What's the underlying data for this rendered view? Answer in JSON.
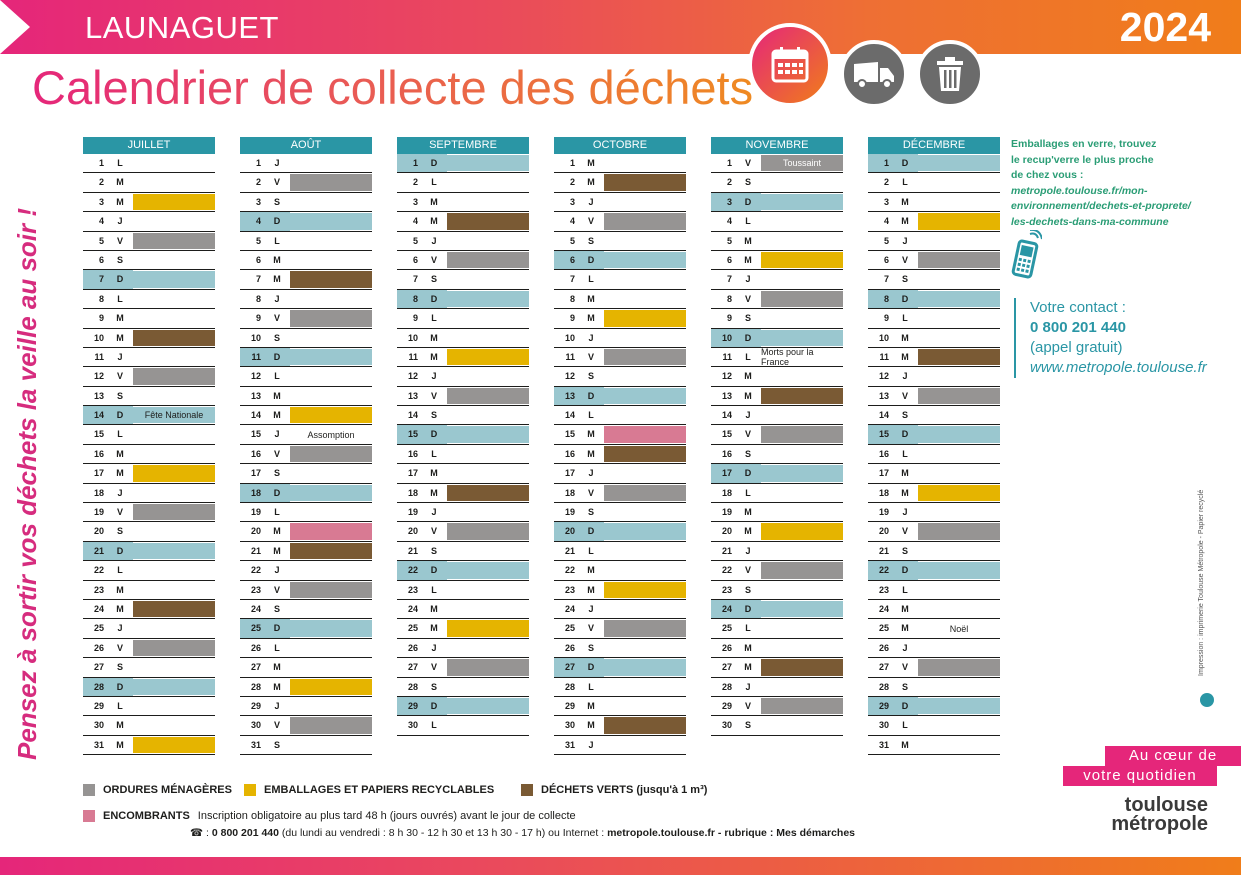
{
  "header": {
    "town": "LAUNAGUET",
    "year": "2024",
    "title": "Calendrier de collecte des déchets"
  },
  "slogan": "Pensez à sortir vos déchets la veille au soir !",
  "colors": {
    "ordures": "#969493",
    "emballages": "#e5b400",
    "verts": "#7a5a34",
    "encombrants": "#d87a93",
    "accent_pink": "#e5267a",
    "accent_teal": "#2a96a5"
  },
  "icons": [
    "calendar-icon",
    "truck-icon",
    "trash-bin-icon",
    "phone-icon"
  ],
  "months": [
    {
      "name": "JUILLET",
      "days": [
        {
          "n": "1",
          "d": "L",
          "c": ""
        },
        {
          "n": "2",
          "d": "M",
          "c": ""
        },
        {
          "n": "3",
          "d": "M",
          "c": "yellow"
        },
        {
          "n": "4",
          "d": "J",
          "c": ""
        },
        {
          "n": "5",
          "d": "V",
          "c": "grey"
        },
        {
          "n": "6",
          "d": "S",
          "c": ""
        },
        {
          "n": "7",
          "d": "D",
          "c": ""
        },
        {
          "n": "8",
          "d": "L",
          "c": ""
        },
        {
          "n": "9",
          "d": "M",
          "c": ""
        },
        {
          "n": "10",
          "d": "M",
          "c": "brown"
        },
        {
          "n": "11",
          "d": "J",
          "c": ""
        },
        {
          "n": "12",
          "d": "V",
          "c": "grey"
        },
        {
          "n": "13",
          "d": "S",
          "c": ""
        },
        {
          "n": "14",
          "d": "D",
          "c": "",
          "label": "Fête Nationale"
        },
        {
          "n": "15",
          "d": "L",
          "c": ""
        },
        {
          "n": "16",
          "d": "M",
          "c": ""
        },
        {
          "n": "17",
          "d": "M",
          "c": "yellow"
        },
        {
          "n": "18",
          "d": "J",
          "c": ""
        },
        {
          "n": "19",
          "d": "V",
          "c": "grey"
        },
        {
          "n": "20",
          "d": "S",
          "c": ""
        },
        {
          "n": "21",
          "d": "D",
          "c": ""
        },
        {
          "n": "22",
          "d": "L",
          "c": ""
        },
        {
          "n": "23",
          "d": "M",
          "c": ""
        },
        {
          "n": "24",
          "d": "M",
          "c": "brown"
        },
        {
          "n": "25",
          "d": "J",
          "c": ""
        },
        {
          "n": "26",
          "d": "V",
          "c": "grey"
        },
        {
          "n": "27",
          "d": "S",
          "c": ""
        },
        {
          "n": "28",
          "d": "D",
          "c": ""
        },
        {
          "n": "29",
          "d": "L",
          "c": ""
        },
        {
          "n": "30",
          "d": "M",
          "c": ""
        },
        {
          "n": "31",
          "d": "M",
          "c": "yellow"
        }
      ]
    },
    {
      "name": "AOÛT",
      "days": [
        {
          "n": "1",
          "d": "J",
          "c": ""
        },
        {
          "n": "2",
          "d": "V",
          "c": "grey"
        },
        {
          "n": "3",
          "d": "S",
          "c": ""
        },
        {
          "n": "4",
          "d": "D",
          "c": ""
        },
        {
          "n": "5",
          "d": "L",
          "c": ""
        },
        {
          "n": "6",
          "d": "M",
          "c": ""
        },
        {
          "n": "7",
          "d": "M",
          "c": "brown"
        },
        {
          "n": "8",
          "d": "J",
          "c": ""
        },
        {
          "n": "9",
          "d": "V",
          "c": "grey"
        },
        {
          "n": "10",
          "d": "S",
          "c": ""
        },
        {
          "n": "11",
          "d": "D",
          "c": ""
        },
        {
          "n": "12",
          "d": "L",
          "c": ""
        },
        {
          "n": "13",
          "d": "M",
          "c": ""
        },
        {
          "n": "14",
          "d": "M",
          "c": "yellow"
        },
        {
          "n": "15",
          "d": "J",
          "c": "",
          "label": "Assomption"
        },
        {
          "n": "16",
          "d": "V",
          "c": "grey"
        },
        {
          "n": "17",
          "d": "S",
          "c": ""
        },
        {
          "n": "18",
          "d": "D",
          "c": ""
        },
        {
          "n": "19",
          "d": "L",
          "c": ""
        },
        {
          "n": "20",
          "d": "M",
          "c": "pink"
        },
        {
          "n": "21",
          "d": "M",
          "c": "brown"
        },
        {
          "n": "22",
          "d": "J",
          "c": ""
        },
        {
          "n": "23",
          "d": "V",
          "c": "grey"
        },
        {
          "n": "24",
          "d": "S",
          "c": ""
        },
        {
          "n": "25",
          "d": "D",
          "c": ""
        },
        {
          "n": "26",
          "d": "L",
          "c": ""
        },
        {
          "n": "27",
          "d": "M",
          "c": ""
        },
        {
          "n": "28",
          "d": "M",
          "c": "yellow"
        },
        {
          "n": "29",
          "d": "J",
          "c": ""
        },
        {
          "n": "30",
          "d": "V",
          "c": "grey"
        },
        {
          "n": "31",
          "d": "S",
          "c": ""
        }
      ]
    },
    {
      "name": "SEPTEMBRE",
      "days": [
        {
          "n": "1",
          "d": "D",
          "c": ""
        },
        {
          "n": "2",
          "d": "L",
          "c": ""
        },
        {
          "n": "3",
          "d": "M",
          "c": ""
        },
        {
          "n": "4",
          "d": "M",
          "c": "brown"
        },
        {
          "n": "5",
          "d": "J",
          "c": ""
        },
        {
          "n": "6",
          "d": "V",
          "c": "grey"
        },
        {
          "n": "7",
          "d": "S",
          "c": ""
        },
        {
          "n": "8",
          "d": "D",
          "c": ""
        },
        {
          "n": "9",
          "d": "L",
          "c": ""
        },
        {
          "n": "10",
          "d": "M",
          "c": ""
        },
        {
          "n": "11",
          "d": "M",
          "c": "yellow"
        },
        {
          "n": "12",
          "d": "J",
          "c": ""
        },
        {
          "n": "13",
          "d": "V",
          "c": "grey"
        },
        {
          "n": "14",
          "d": "S",
          "c": ""
        },
        {
          "n": "15",
          "d": "D",
          "c": ""
        },
        {
          "n": "16",
          "d": "L",
          "c": ""
        },
        {
          "n": "17",
          "d": "M",
          "c": ""
        },
        {
          "n": "18",
          "d": "M",
          "c": "brown"
        },
        {
          "n": "19",
          "d": "J",
          "c": ""
        },
        {
          "n": "20",
          "d": "V",
          "c": "grey"
        },
        {
          "n": "21",
          "d": "S",
          "c": ""
        },
        {
          "n": "22",
          "d": "D",
          "c": ""
        },
        {
          "n": "23",
          "d": "L",
          "c": ""
        },
        {
          "n": "24",
          "d": "M",
          "c": ""
        },
        {
          "n": "25",
          "d": "M",
          "c": "yellow"
        },
        {
          "n": "26",
          "d": "J",
          "c": ""
        },
        {
          "n": "27",
          "d": "V",
          "c": "grey"
        },
        {
          "n": "28",
          "d": "S",
          "c": ""
        },
        {
          "n": "29",
          "d": "D",
          "c": ""
        },
        {
          "n": "30",
          "d": "L",
          "c": ""
        }
      ]
    },
    {
      "name": "OCTOBRE",
      "days": [
        {
          "n": "1",
          "d": "M",
          "c": ""
        },
        {
          "n": "2",
          "d": "M",
          "c": "brown"
        },
        {
          "n": "3",
          "d": "J",
          "c": ""
        },
        {
          "n": "4",
          "d": "V",
          "c": "grey"
        },
        {
          "n": "5",
          "d": "S",
          "c": ""
        },
        {
          "n": "6",
          "d": "D",
          "c": ""
        },
        {
          "n": "7",
          "d": "L",
          "c": ""
        },
        {
          "n": "8",
          "d": "M",
          "c": ""
        },
        {
          "n": "9",
          "d": "M",
          "c": "yellow"
        },
        {
          "n": "10",
          "d": "J",
          "c": ""
        },
        {
          "n": "11",
          "d": "V",
          "c": "grey"
        },
        {
          "n": "12",
          "d": "S",
          "c": ""
        },
        {
          "n": "13",
          "d": "D",
          "c": ""
        },
        {
          "n": "14",
          "d": "L",
          "c": ""
        },
        {
          "n": "15",
          "d": "M",
          "c": "pink"
        },
        {
          "n": "16",
          "d": "M",
          "c": "brown"
        },
        {
          "n": "17",
          "d": "J",
          "c": ""
        },
        {
          "n": "18",
          "d": "V",
          "c": "grey"
        },
        {
          "n": "19",
          "d": "S",
          "c": ""
        },
        {
          "n": "20",
          "d": "D",
          "c": ""
        },
        {
          "n": "21",
          "d": "L",
          "c": ""
        },
        {
          "n": "22",
          "d": "M",
          "c": ""
        },
        {
          "n": "23",
          "d": "M",
          "c": "yellow"
        },
        {
          "n": "24",
          "d": "J",
          "c": ""
        },
        {
          "n": "25",
          "d": "V",
          "c": "grey"
        },
        {
          "n": "26",
          "d": "S",
          "c": ""
        },
        {
          "n": "27",
          "d": "D",
          "c": ""
        },
        {
          "n": "28",
          "d": "L",
          "c": ""
        },
        {
          "n": "29",
          "d": "M",
          "c": ""
        },
        {
          "n": "30",
          "d": "M",
          "c": "brown"
        },
        {
          "n": "31",
          "d": "J",
          "c": ""
        }
      ]
    },
    {
      "name": "NOVEMBRE",
      "days": [
        {
          "n": "1",
          "d": "V",
          "c": "grey",
          "label": "Toussaint"
        },
        {
          "n": "2",
          "d": "S",
          "c": ""
        },
        {
          "n": "3",
          "d": "D",
          "c": ""
        },
        {
          "n": "4",
          "d": "L",
          "c": ""
        },
        {
          "n": "5",
          "d": "M",
          "c": ""
        },
        {
          "n": "6",
          "d": "M",
          "c": "yellow"
        },
        {
          "n": "7",
          "d": "J",
          "c": ""
        },
        {
          "n": "8",
          "d": "V",
          "c": "grey"
        },
        {
          "n": "9",
          "d": "S",
          "c": ""
        },
        {
          "n": "10",
          "d": "D",
          "c": ""
        },
        {
          "n": "11",
          "d": "L",
          "c": "",
          "label": "Morts pour la France"
        },
        {
          "n": "12",
          "d": "M",
          "c": ""
        },
        {
          "n": "13",
          "d": "M",
          "c": "brown"
        },
        {
          "n": "14",
          "d": "J",
          "c": ""
        },
        {
          "n": "15",
          "d": "V",
          "c": "grey"
        },
        {
          "n": "16",
          "d": "S",
          "c": ""
        },
        {
          "n": "17",
          "d": "D",
          "c": ""
        },
        {
          "n": "18",
          "d": "L",
          "c": ""
        },
        {
          "n": "19",
          "d": "M",
          "c": ""
        },
        {
          "n": "20",
          "d": "M",
          "c": "yellow"
        },
        {
          "n": "21",
          "d": "J",
          "c": ""
        },
        {
          "n": "22",
          "d": "V",
          "c": "grey"
        },
        {
          "n": "23",
          "d": "S",
          "c": ""
        },
        {
          "n": "24",
          "d": "D",
          "c": ""
        },
        {
          "n": "25",
          "d": "L",
          "c": ""
        },
        {
          "n": "26",
          "d": "M",
          "c": ""
        },
        {
          "n": "27",
          "d": "M",
          "c": "brown"
        },
        {
          "n": "28",
          "d": "J",
          "c": ""
        },
        {
          "n": "29",
          "d": "V",
          "c": "grey"
        },
        {
          "n": "30",
          "d": "S",
          "c": ""
        }
      ]
    },
    {
      "name": "DÉCEMBRE",
      "days": [
        {
          "n": "1",
          "d": "D",
          "c": ""
        },
        {
          "n": "2",
          "d": "L",
          "c": ""
        },
        {
          "n": "3",
          "d": "M",
          "c": ""
        },
        {
          "n": "4",
          "d": "M",
          "c": "yellow"
        },
        {
          "n": "5",
          "d": "J",
          "c": ""
        },
        {
          "n": "6",
          "d": "V",
          "c": "grey"
        },
        {
          "n": "7",
          "d": "S",
          "c": ""
        },
        {
          "n": "8",
          "d": "D",
          "c": ""
        },
        {
          "n": "9",
          "d": "L",
          "c": ""
        },
        {
          "n": "10",
          "d": "M",
          "c": ""
        },
        {
          "n": "11",
          "d": "M",
          "c": "brown"
        },
        {
          "n": "12",
          "d": "J",
          "c": ""
        },
        {
          "n": "13",
          "d": "V",
          "c": "grey"
        },
        {
          "n": "14",
          "d": "S",
          "c": ""
        },
        {
          "n": "15",
          "d": "D",
          "c": ""
        },
        {
          "n": "16",
          "d": "L",
          "c": ""
        },
        {
          "n": "17",
          "d": "M",
          "c": ""
        },
        {
          "n": "18",
          "d": "M",
          "c": "yellow"
        },
        {
          "n": "19",
          "d": "J",
          "c": ""
        },
        {
          "n": "20",
          "d": "V",
          "c": "grey"
        },
        {
          "n": "21",
          "d": "S",
          "c": ""
        },
        {
          "n": "22",
          "d": "D",
          "c": ""
        },
        {
          "n": "23",
          "d": "L",
          "c": ""
        },
        {
          "n": "24",
          "d": "M",
          "c": ""
        },
        {
          "n": "25",
          "d": "M",
          "c": "",
          "label": "Noël"
        },
        {
          "n": "26",
          "d": "J",
          "c": ""
        },
        {
          "n": "27",
          "d": "V",
          "c": "grey"
        },
        {
          "n": "28",
          "d": "S",
          "c": ""
        },
        {
          "n": "29",
          "d": "D",
          "c": ""
        },
        {
          "n": "30",
          "d": "L",
          "c": ""
        },
        {
          "n": "31",
          "d": "M",
          "c": ""
        }
      ]
    }
  ],
  "side": {
    "verre_line1": "Emballages en verre, trouvez",
    "verre_line2": "le recup'verre le plus proche",
    "verre_line3": "de chez vous :",
    "verre_link1": "metropole.toulouse.fr/mon-",
    "verre_link2": "environnement/dechets-et-proprete/",
    "verre_link3": "les-dechets-dans-ma-commune",
    "contact_label": "Votre contact :",
    "contact_phone": "0 800 201 440",
    "contact_free": "(appel gratuit)",
    "contact_web": "www.metropole.toulouse.fr"
  },
  "printer": "Impression : imprimerie Toulouse Métropole - Papier recyclé",
  "legend": {
    "ordures": "ORDURES MÉNAGÈRES",
    "emballages": "EMBALLAGES ET PAPIERS RECYCLABLES",
    "verts": "DÉCHETS VERTS (jusqu'à 1 m³)",
    "encombrants": "ENCOMBRANTS",
    "encombrants_text": "Inscription obligatoire au plus tard 48 h (jours ouvrés) avant le jour de collecte",
    "phone_symbol": "☎ :",
    "phone_number": "0 800 201 440",
    "phone_hours": "(du lundi au vendredi : 8 h 30 - 12 h 30 et 13 h 30 - 17 h) ou Internet :",
    "phone_web": "metropole.toulouse.fr - rubrique : Mes démarches"
  },
  "branding": {
    "tagline1": "Au cœur de",
    "tagline2": "votre quotidien",
    "logo1": "toulouse",
    "logo2": "métropole"
  }
}
